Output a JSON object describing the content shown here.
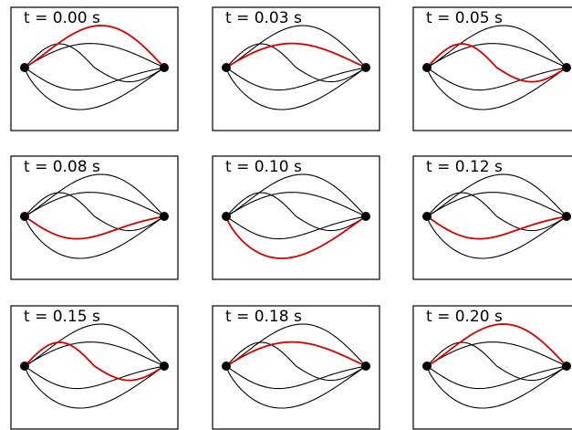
{
  "panels": [
    {
      "label": "t = 0.00 s",
      "highlight_mode": 0
    },
    {
      "label": "t = 0.03 s",
      "highlight_mode": 1
    },
    {
      "label": "t = 0.05 s",
      "highlight_mode": 2
    },
    {
      "label": "t = 0.08 s",
      "highlight_mode": 3
    },
    {
      "label": "t = 0.10 s",
      "highlight_mode": 4
    },
    {
      "label": "t = 0.12 s",
      "highlight_mode": 3
    },
    {
      "label": "t = 0.15 s",
      "highlight_mode": 2
    },
    {
      "label": "t = 0.18 s",
      "highlight_mode": 1
    },
    {
      "label": "t = 0.20 s",
      "highlight_mode": 0
    }
  ],
  "colors": {
    "highlight": "#d40000",
    "curve": "#000000",
    "frame": "#000000",
    "endpoint": "#000000"
  }
}
